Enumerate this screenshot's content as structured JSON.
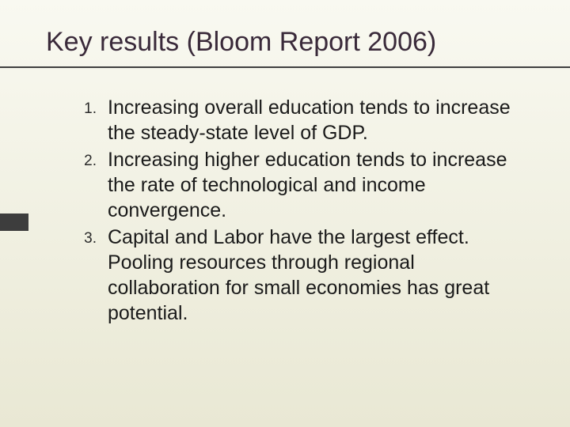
{
  "slide": {
    "title": "Key results (Bloom Report 2006)",
    "title_color": "#3a2a3a",
    "title_fontsize": 34,
    "underline_color": "#404040",
    "accent_bar_color": "#3d3d3d",
    "background_gradient_top": "#f9f9f1",
    "background_gradient_bottom": "#e9e8d4",
    "list_fontsize": 25,
    "marker_fontsize": 19,
    "text_color": "#1a1a1a",
    "items": [
      {
        "marker": "1.",
        "text": "Increasing overall education tends to increase the steady-state level of GDP."
      },
      {
        "marker": "2.",
        "text": "Increasing higher education tends to increase the rate of technological and income convergence."
      },
      {
        "marker": "3.",
        "text": "Capital and Labor have the largest effect. Pooling resources through regional collaboration for small economies has great potential."
      }
    ]
  }
}
